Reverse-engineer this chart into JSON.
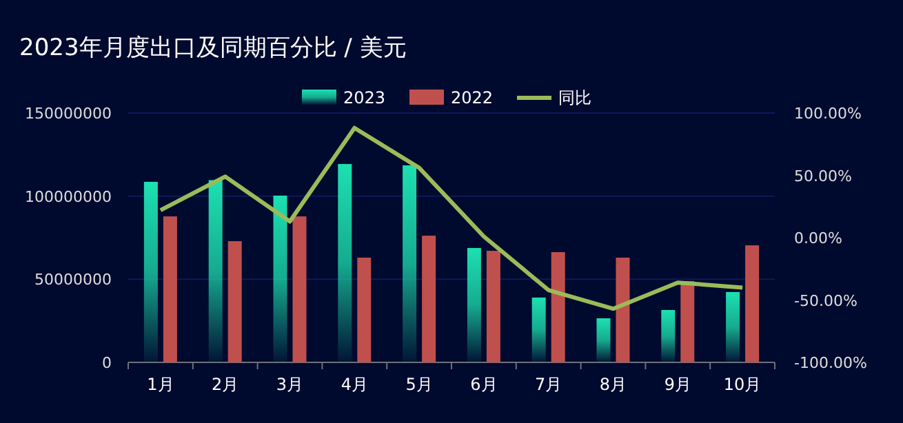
{
  "chart_data": {
    "type": "bar",
    "title": "2023年月度出口及同期百分比 / 美元",
    "categories": [
      "1月",
      "2月",
      "3月",
      "4月",
      "5月",
      "6月",
      "7月",
      "8月",
      "9月",
      "10月"
    ],
    "series": [
      {
        "name": "2023",
        "color": "#1de0b0",
        "values": [
          108600000,
          109600000,
          100300000,
          119300000,
          118500000,
          68800000,
          39000000,
          26500000,
          31500000,
          42300000
        ]
      },
      {
        "name": "2022",
        "color": "#c0504d",
        "values": [
          87800000,
          72900000,
          87800000,
          63000000,
          76200000,
          67100000,
          66300000,
          63000000,
          48900000,
          70400000
        ]
      },
      {
        "name": "同比",
        "type": "line",
        "axis": "y2",
        "color": "#9bbb59",
        "values": [
          22,
          49,
          13,
          88,
          56,
          1,
          -42,
          -57,
          -36,
          -40
        ]
      }
    ],
    "ylim": [
      0,
      150000000
    ],
    "yticks": [
      0,
      50000000,
      100000000,
      150000000
    ],
    "y2lim": [
      -100,
      100
    ],
    "y2ticks": [
      {
        "value": -100,
        "label": "-100.00%"
      },
      {
        "value": -50,
        "label": "-50.00%"
      },
      {
        "value": 0,
        "label": "0.00%"
      },
      {
        "value": 50,
        "label": "50.00%"
      },
      {
        "value": 100,
        "label": "100.00%"
      }
    ],
    "grid": "y",
    "legend": "top",
    "marker": "none"
  }
}
